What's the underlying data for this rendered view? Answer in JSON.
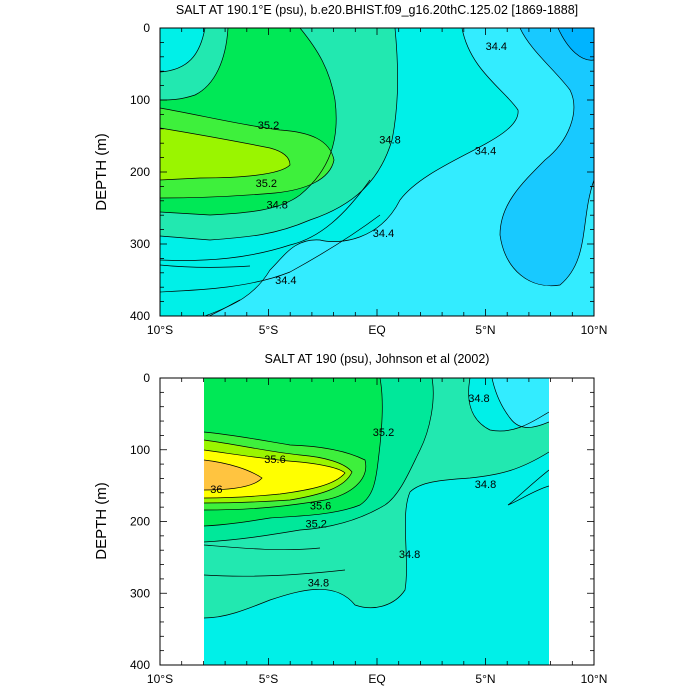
{
  "chart_data": [
    {
      "type": "contour",
      "title": "SALT AT 190.1°E (psu), b.e20.BHIST.f09_g16.20thC.125.02 [1869-1888]",
      "ylabel": "DEPTH (m)",
      "xlabel": "",
      "xlim": [
        -10,
        10
      ],
      "ylim": [
        400,
        0
      ],
      "x_ticks": [
        "10°S",
        "5°S",
        "EQ",
        "5°N",
        "10°N"
      ],
      "y_ticks": [
        "0",
        "100",
        "200",
        "300",
        "400"
      ],
      "contour_interval": 0.2,
      "contour_labels": [
        {
          "text": "35.2",
          "lat": -5.0,
          "depth": 135
        },
        {
          "text": "35.2",
          "lat": -5.1,
          "depth": 215
        },
        {
          "text": "34.8",
          "lat": -4.6,
          "depth": 245
        },
        {
          "text": "34.8",
          "lat": 0.6,
          "depth": 155
        },
        {
          "text": "34.4",
          "lat": 0.3,
          "depth": 285
        },
        {
          "text": "34.4",
          "lat": -4.2,
          "depth": 350
        },
        {
          "text": "34.4",
          "lat": 5.0,
          "depth": 170
        },
        {
          "text": "34.4",
          "lat": 5.5,
          "depth": 25
        }
      ],
      "fill_colors": [
        "#00b4ff",
        "#18c9ff",
        "#33ecff",
        "#00f0e8",
        "#22e8b0",
        "#00e89a",
        "#00e856",
        "#3ef03c",
        "#9af500",
        "#ffff00",
        "#ffc440"
      ]
    },
    {
      "type": "contour",
      "title": "SALT AT 190 (psu), Johnson et al (2002)",
      "ylabel": "DEPTH (m)",
      "xlabel": "",
      "xlim": [
        -10,
        10
      ],
      "ylim": [
        400,
        0
      ],
      "x_ticks": [
        "10°S",
        "5°S",
        "EQ",
        "5°N",
        "10°N"
      ],
      "y_ticks": [
        "0",
        "100",
        "200",
        "300",
        "400"
      ],
      "data_lat_range": [
        -8,
        8
      ],
      "contour_interval": 0.2,
      "contour_labels": [
        {
          "text": "36",
          "lat": -7.4,
          "depth": 155
        },
        {
          "text": "35.6",
          "lat": -4.7,
          "depth": 113
        },
        {
          "text": "35.6",
          "lat": -2.6,
          "depth": 178
        },
        {
          "text": "35.2",
          "lat": -2.8,
          "depth": 203
        },
        {
          "text": "35.2",
          "lat": 0.3,
          "depth": 75
        },
        {
          "text": "34.8",
          "lat": 1.5,
          "depth": 245
        },
        {
          "text": "34.8",
          "lat": -2.7,
          "depth": 285
        },
        {
          "text": "34.8",
          "lat": 4.7,
          "depth": 28
        },
        {
          "text": "34.8",
          "lat": 5.0,
          "depth": 148
        }
      ]
    }
  ]
}
